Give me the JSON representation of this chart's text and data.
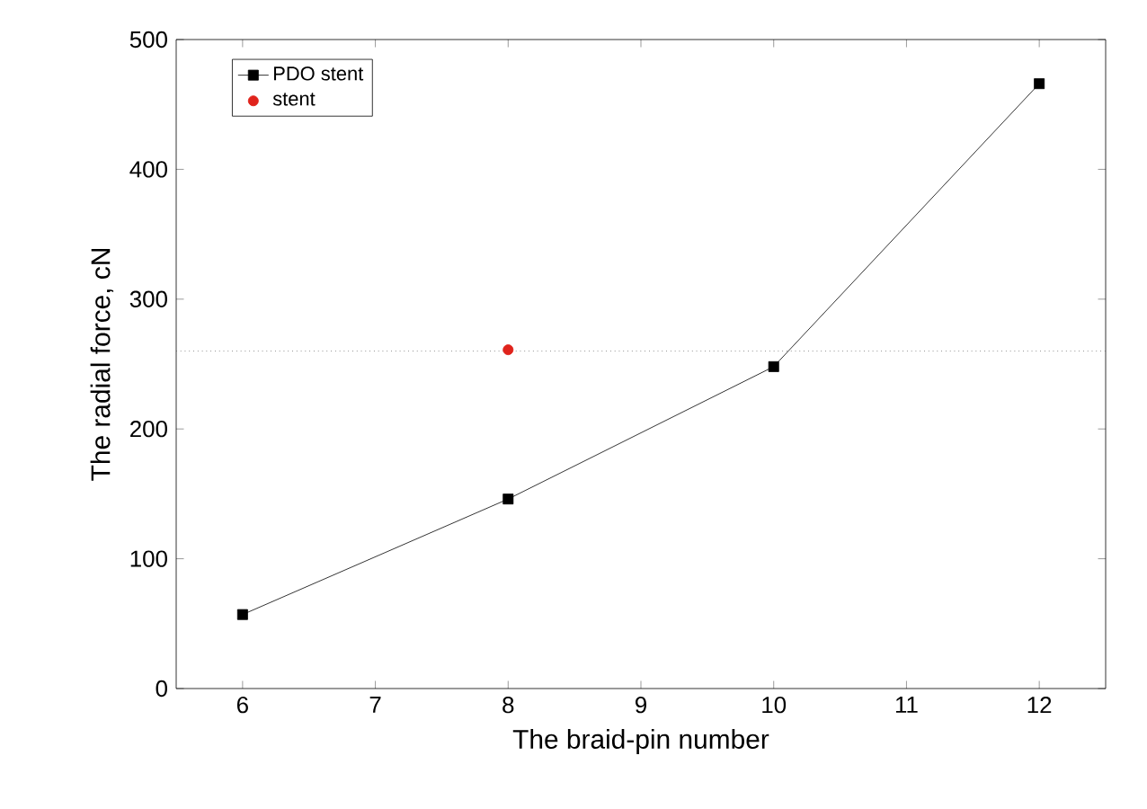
{
  "chart_data": {
    "type": "line",
    "xlabel": "The braid-pin number",
    "ylabel": "The radial force, cN",
    "xlim": [
      5.5,
      12.5
    ],
    "xticks": [
      6,
      7,
      8,
      9,
      10,
      11,
      12
    ],
    "ylim": [
      0,
      500
    ],
    "yticks": [
      0,
      100,
      200,
      300,
      400,
      500
    ],
    "grid": false,
    "legend": "top left",
    "series": [
      {
        "name": "PDO stent",
        "marker": "square",
        "color": "#000000",
        "x": [
          6,
          8,
          10,
          12
        ],
        "values": [
          57,
          146,
          248,
          466
        ]
      },
      {
        "name": "stent",
        "type": "scatter",
        "marker": "circle",
        "color": "#e0231c",
        "x": [
          8
        ],
        "values": [
          261
        ]
      }
    ],
    "ref_lines": [
      {
        "axis": "y",
        "value": 260,
        "line_style": "dotted",
        "color": "#555555"
      }
    ]
  }
}
